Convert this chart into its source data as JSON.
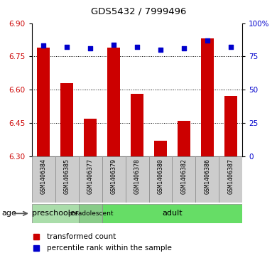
{
  "title": "GDS5432 / 7999496",
  "samples": [
    "GSM1406384",
    "GSM1406385",
    "GSM1406377",
    "GSM1406379",
    "GSM1406378",
    "GSM1406380",
    "GSM1406382",
    "GSM1406386",
    "GSM1406387"
  ],
  "bar_values": [
    6.79,
    6.63,
    6.47,
    6.79,
    6.58,
    6.37,
    6.46,
    6.83,
    6.57
  ],
  "percentile_values": [
    83,
    82,
    81,
    84,
    82,
    80,
    81,
    87,
    82
  ],
  "y_min": 6.3,
  "y_max": 6.9,
  "y_ticks": [
    6.3,
    6.45,
    6.6,
    6.75,
    6.9
  ],
  "y_right_ticks": [
    0,
    25,
    50,
    75,
    100
  ],
  "bar_color": "#cc0000",
  "dot_color": "#0000cc",
  "bar_bottom": 6.3,
  "groups": [
    {
      "label": "preschooler",
      "start": 0,
      "end": 2,
      "color": "#aaddaa"
    },
    {
      "label": "preadolescent",
      "start": 2,
      "end": 3,
      "color": "#88cc88"
    },
    {
      "label": "adult",
      "start": 3,
      "end": 9,
      "color": "#66dd66"
    }
  ],
  "age_label": "age",
  "legend_bar_label": "transformed count",
  "legend_dot_label": "percentile rank within the sample",
  "bar_color_legend": "#cc0000",
  "dot_color_legend": "#0000cc",
  "xlabel_color": "#cc0000",
  "yright_color": "#0000cc",
  "bar_width": 0.55,
  "label_box_color": "#cccccc",
  "label_box_edge": "#888888"
}
